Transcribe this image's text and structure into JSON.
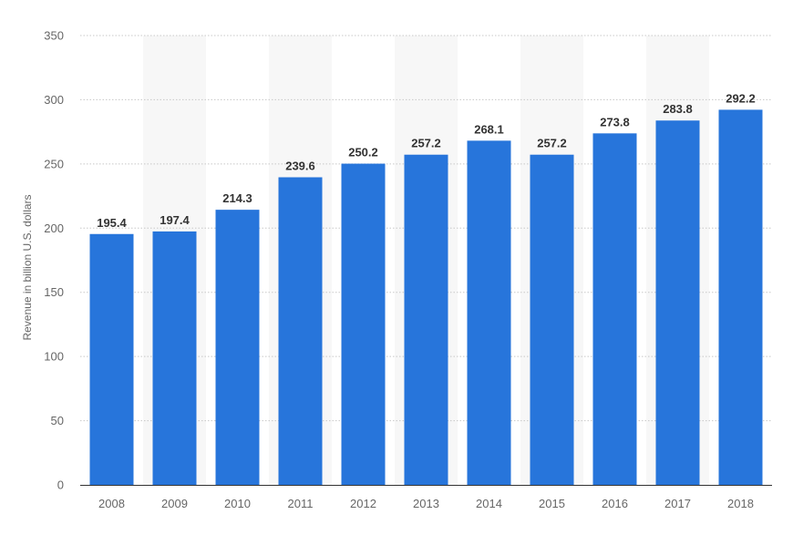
{
  "chart_data": {
    "type": "bar",
    "categories": [
      "2008",
      "2009",
      "2010",
      "2011",
      "2012",
      "2013",
      "2014",
      "2015",
      "2016",
      "2017",
      "2018"
    ],
    "values": [
      195.4,
      197.4,
      214.3,
      239.6,
      250.2,
      257.2,
      268.1,
      257.2,
      273.8,
      283.8,
      292.2
    ],
    "value_labels": [
      "195.4",
      "197.4",
      "214.3",
      "239.6",
      "250.2",
      "257.2",
      "268.1",
      "257.2",
      "273.8",
      "283.8",
      "292.2"
    ],
    "yticks": [
      0,
      50,
      100,
      150,
      200,
      250,
      300,
      350
    ],
    "ytick_labels": [
      "0",
      "50",
      "100",
      "150",
      "200",
      "250",
      "300",
      "350"
    ],
    "ylim": [
      0,
      350
    ],
    "ylabel": "Revenue in billion U.S. dollars",
    "xlabel": "",
    "grid": true,
    "legend": "none",
    "colors": {
      "bar": "#2775db",
      "band": "#f7f7f7",
      "grid": "#c8c8c8",
      "axis": "#333333"
    }
  }
}
